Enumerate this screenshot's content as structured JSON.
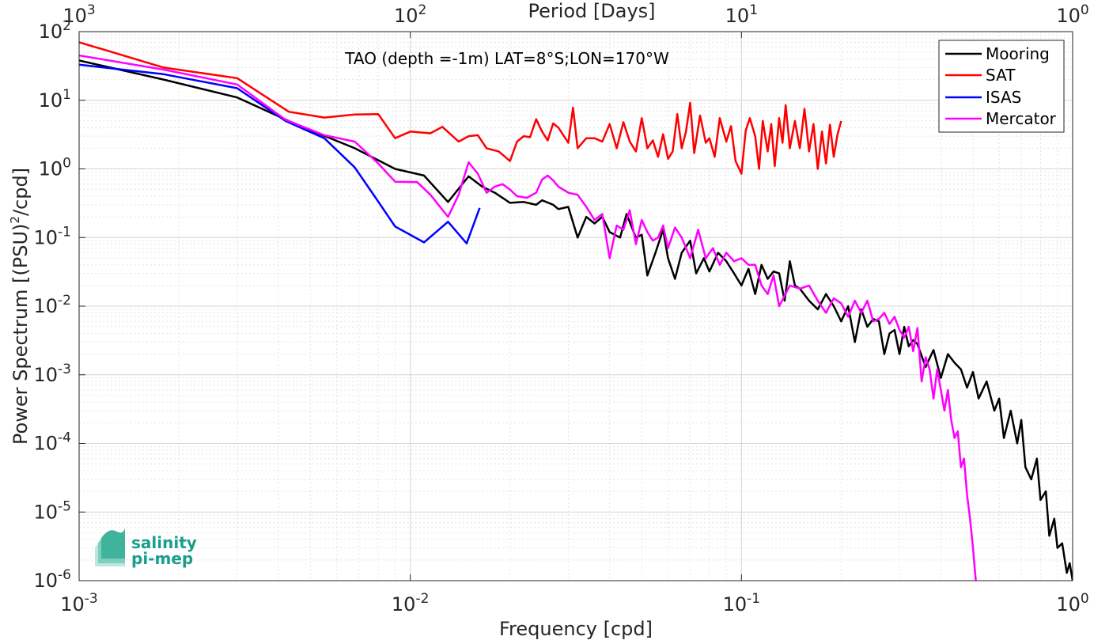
{
  "chart_data": {
    "type": "line",
    "title": "TAO (depth =-1m) LAT=8°S;LON=170°W",
    "xlabel": "Frequency [cpd]",
    "ylabel_parts": [
      "Power Spectrum [(PSU)",
      "2",
      "/cpd]"
    ],
    "top_xlabel": "Period [Days]",
    "x_scale": "log",
    "y_scale": "log",
    "xlim": [
      0.001,
      1
    ],
    "ylim": [
      1e-06,
      100
    ],
    "grid": "on",
    "legend_position": "top-right",
    "x_ticks": [
      {
        "value": 0.001,
        "base": "10",
        "exp": "-3"
      },
      {
        "value": 0.01,
        "base": "10",
        "exp": "-2"
      },
      {
        "value": 0.1,
        "base": "10",
        "exp": "-1"
      },
      {
        "value": 1,
        "base": "10",
        "exp": "0"
      }
    ],
    "top_ticks": [
      {
        "value": 0.001,
        "base": "10",
        "exp": "3"
      },
      {
        "value": 0.01,
        "base": "10",
        "exp": "2"
      },
      {
        "value": 0.1,
        "base": "10",
        "exp": "1"
      },
      {
        "value": 1,
        "base": "10",
        "exp": "0"
      }
    ],
    "y_ticks": [
      {
        "value": 100,
        "base": "10",
        "exp": "2"
      },
      {
        "value": 10,
        "base": "10",
        "exp": "1"
      },
      {
        "value": 1,
        "base": "10",
        "exp": "0"
      },
      {
        "value": 0.1,
        "base": "10",
        "exp": "-1"
      },
      {
        "value": 0.01,
        "base": "10",
        "exp": "-2"
      },
      {
        "value": 0.001,
        "base": "10",
        "exp": "-3"
      },
      {
        "value": 0.0001,
        "base": "10",
        "exp": "-4"
      },
      {
        "value": 1e-05,
        "base": "10",
        "exp": "-5"
      },
      {
        "value": 1e-06,
        "base": "10",
        "exp": "-6"
      }
    ],
    "series": [
      {
        "name": "Mooring",
        "color": "#000000",
        "points": [
          [
            0.001,
            38
          ],
          [
            0.0018,
            20
          ],
          [
            0.003,
            11
          ],
          [
            0.0045,
            4.5
          ],
          [
            0.0068,
            2.0
          ],
          [
            0.009,
            1.0
          ],
          [
            0.011,
            0.8
          ],
          [
            0.013,
            0.33
          ],
          [
            0.015,
            0.78
          ],
          [
            0.0165,
            0.55
          ],
          [
            0.018,
            0.45
          ],
          [
            0.02,
            0.32
          ],
          [
            0.022,
            0.33
          ],
          [
            0.024,
            0.3
          ],
          [
            0.025,
            0.35
          ],
          [
            0.027,
            0.3
          ],
          [
            0.028,
            0.26
          ],
          [
            0.03,
            0.28
          ],
          [
            0.032,
            0.1
          ],
          [
            0.034,
            0.2
          ],
          [
            0.036,
            0.16
          ],
          [
            0.038,
            0.2
          ],
          [
            0.04,
            0.12
          ],
          [
            0.043,
            0.1
          ],
          [
            0.045,
            0.22
          ],
          [
            0.048,
            0.1
          ],
          [
            0.05,
            0.11
          ],
          [
            0.052,
            0.028
          ],
          [
            0.055,
            0.06
          ],
          [
            0.058,
            0.13
          ],
          [
            0.06,
            0.05
          ],
          [
            0.063,
            0.025
          ],
          [
            0.066,
            0.06
          ],
          [
            0.07,
            0.09
          ],
          [
            0.073,
            0.03
          ],
          [
            0.077,
            0.05
          ],
          [
            0.08,
            0.032
          ],
          [
            0.085,
            0.06
          ],
          [
            0.09,
            0.045
          ],
          [
            0.095,
            0.03
          ],
          [
            0.1,
            0.02
          ],
          [
            0.105,
            0.035
          ],
          [
            0.11,
            0.015
          ],
          [
            0.115,
            0.04
          ],
          [
            0.12,
            0.025
          ],
          [
            0.125,
            0.032
          ],
          [
            0.13,
            0.03
          ],
          [
            0.135,
            0.012
          ],
          [
            0.14,
            0.045
          ],
          [
            0.145,
            0.02
          ],
          [
            0.15,
            0.018
          ],
          [
            0.16,
            0.012
          ],
          [
            0.17,
            0.009
          ],
          [
            0.18,
            0.015
          ],
          [
            0.19,
            0.01
          ],
          [
            0.2,
            0.006
          ],
          [
            0.21,
            0.01
          ],
          [
            0.22,
            0.003
          ],
          [
            0.23,
            0.009
          ],
          [
            0.24,
            0.005
          ],
          [
            0.25,
            0.0065
          ],
          [
            0.26,
            0.006
          ],
          [
            0.27,
            0.002
          ],
          [
            0.28,
            0.004
          ],
          [
            0.29,
            0.0045
          ],
          [
            0.3,
            0.002
          ],
          [
            0.31,
            0.005
          ],
          [
            0.32,
            0.0026
          ],
          [
            0.33,
            0.0032
          ],
          [
            0.34,
            0.0028
          ],
          [
            0.36,
            0.0013
          ],
          [
            0.38,
            0.0023
          ],
          [
            0.4,
            0.0009
          ],
          [
            0.42,
            0.002
          ],
          [
            0.44,
            0.0015
          ],
          [
            0.46,
            0.0012
          ],
          [
            0.48,
            0.00065
          ],
          [
            0.5,
            0.0011
          ],
          [
            0.52,
            0.00045
          ],
          [
            0.55,
            0.0008
          ],
          [
            0.58,
            0.0003
          ],
          [
            0.6,
            0.00045
          ],
          [
            0.62,
            0.00012
          ],
          [
            0.65,
            0.0003
          ],
          [
            0.68,
            0.0001
          ],
          [
            0.7,
            0.00022
          ],
          [
            0.72,
            4.5e-05
          ],
          [
            0.75,
            3e-05
          ],
          [
            0.78,
            6e-05
          ],
          [
            0.8,
            1.5e-05
          ],
          [
            0.83,
            2e-05
          ],
          [
            0.85,
            4.5e-06
          ],
          [
            0.88,
            8e-06
          ],
          [
            0.9,
            3e-06
          ],
          [
            0.93,
            3.5e-06
          ],
          [
            0.96,
            1.3e-06
          ],
          [
            0.98,
            1.8e-06
          ],
          [
            1.0,
            1e-06
          ]
        ]
      },
      {
        "name": "SAT",
        "color": "#ff0000",
        "points": [
          [
            0.001,
            70
          ],
          [
            0.0018,
            30
          ],
          [
            0.003,
            21
          ],
          [
            0.0043,
            6.8
          ],
          [
            0.0055,
            5.6
          ],
          [
            0.0068,
            6.2
          ],
          [
            0.008,
            6.3
          ],
          [
            0.009,
            2.8
          ],
          [
            0.01,
            3.5
          ],
          [
            0.0115,
            3.3
          ],
          [
            0.0125,
            4.1
          ],
          [
            0.014,
            2.5
          ],
          [
            0.015,
            3.0
          ],
          [
            0.016,
            3.1
          ],
          [
            0.017,
            2.0
          ],
          [
            0.0185,
            1.8
          ],
          [
            0.02,
            1.3
          ],
          [
            0.021,
            2.5
          ],
          [
            0.022,
            3.0
          ],
          [
            0.023,
            2.9
          ],
          [
            0.024,
            5.3
          ],
          [
            0.025,
            3.5
          ],
          [
            0.026,
            2.6
          ],
          [
            0.027,
            4.6
          ],
          [
            0.028,
            4.0
          ],
          [
            0.03,
            2.4
          ],
          [
            0.031,
            7.8
          ],
          [
            0.032,
            2.0
          ],
          [
            0.034,
            2.8
          ],
          [
            0.036,
            2.8
          ],
          [
            0.038,
            2.5
          ],
          [
            0.04,
            4.5
          ],
          [
            0.042,
            2.0
          ],
          [
            0.044,
            4.8
          ],
          [
            0.046,
            2.5
          ],
          [
            0.048,
            1.8
          ],
          [
            0.05,
            5.5
          ],
          [
            0.052,
            2.0
          ],
          [
            0.054,
            2.6
          ],
          [
            0.056,
            1.5
          ],
          [
            0.058,
            3.2
          ],
          [
            0.06,
            1.4
          ],
          [
            0.062,
            1.8
          ],
          [
            0.064,
            6.3
          ],
          [
            0.066,
            2.0
          ],
          [
            0.068,
            3.5
          ],
          [
            0.07,
            9.2
          ],
          [
            0.072,
            1.7
          ],
          [
            0.075,
            6.0
          ],
          [
            0.078,
            2.4
          ],
          [
            0.08,
            2.8
          ],
          [
            0.083,
            1.5
          ],
          [
            0.086,
            5.5
          ],
          [
            0.09,
            2.5
          ],
          [
            0.093,
            4.2
          ],
          [
            0.096,
            1.3
          ],
          [
            0.1,
            0.85
          ],
          [
            0.103,
            3.6
          ],
          [
            0.106,
            5.5
          ],
          [
            0.11,
            3.0
          ],
          [
            0.113,
            1.0
          ],
          [
            0.116,
            5.0
          ],
          [
            0.12,
            1.8
          ],
          [
            0.123,
            4.5
          ],
          [
            0.126,
            1.1
          ],
          [
            0.13,
            5.5
          ],
          [
            0.133,
            2.4
          ],
          [
            0.136,
            8.5
          ],
          [
            0.14,
            2.0
          ],
          [
            0.145,
            5.0
          ],
          [
            0.15,
            2.0
          ],
          [
            0.155,
            7.5
          ],
          [
            0.16,
            1.8
          ],
          [
            0.165,
            4.5
          ],
          [
            0.17,
            1.0
          ],
          [
            0.175,
            3.5
          ],
          [
            0.18,
            1.2
          ],
          [
            0.185,
            4.4
          ],
          [
            0.19,
            1.5
          ],
          [
            0.195,
            3.2
          ],
          [
            0.2,
            5.0
          ]
        ]
      },
      {
        "name": "ISAS",
        "color": "#0000ff",
        "points": [
          [
            0.001,
            33
          ],
          [
            0.0018,
            24
          ],
          [
            0.003,
            15
          ],
          [
            0.0042,
            5.0
          ],
          [
            0.0055,
            2.8
          ],
          [
            0.0068,
            1.05
          ],
          [
            0.0078,
            0.4
          ],
          [
            0.009,
            0.145
          ],
          [
            0.011,
            0.085
          ],
          [
            0.013,
            0.17
          ],
          [
            0.0148,
            0.082
          ],
          [
            0.0162,
            0.27
          ]
        ]
      },
      {
        "name": "Mercator",
        "color": "#ff00ff",
        "points": [
          [
            0.001,
            45
          ],
          [
            0.0018,
            28
          ],
          [
            0.003,
            17
          ],
          [
            0.0042,
            5.2
          ],
          [
            0.0055,
            3.1
          ],
          [
            0.0068,
            2.5
          ],
          [
            0.008,
            1.2
          ],
          [
            0.009,
            0.65
          ],
          [
            0.0105,
            0.64
          ],
          [
            0.0115,
            0.42
          ],
          [
            0.013,
            0.2
          ],
          [
            0.014,
            0.42
          ],
          [
            0.015,
            1.25
          ],
          [
            0.016,
            0.85
          ],
          [
            0.017,
            0.45
          ],
          [
            0.018,
            0.55
          ],
          [
            0.019,
            0.6
          ],
          [
            0.02,
            0.5
          ],
          [
            0.021,
            0.4
          ],
          [
            0.0225,
            0.38
          ],
          [
            0.024,
            0.45
          ],
          [
            0.025,
            0.7
          ],
          [
            0.026,
            0.8
          ],
          [
            0.027,
            0.68
          ],
          [
            0.028,
            0.55
          ],
          [
            0.03,
            0.45
          ],
          [
            0.032,
            0.42
          ],
          [
            0.034,
            0.28
          ],
          [
            0.036,
            0.18
          ],
          [
            0.038,
            0.22
          ],
          [
            0.04,
            0.05
          ],
          [
            0.042,
            0.15
          ],
          [
            0.044,
            0.13
          ],
          [
            0.046,
            0.25
          ],
          [
            0.048,
            0.08
          ],
          [
            0.05,
            0.18
          ],
          [
            0.052,
            0.12
          ],
          [
            0.054,
            0.09
          ],
          [
            0.056,
            0.1
          ],
          [
            0.058,
            0.15
          ],
          [
            0.06,
            0.07
          ],
          [
            0.063,
            0.14
          ],
          [
            0.066,
            0.1
          ],
          [
            0.07,
            0.05
          ],
          [
            0.074,
            0.13
          ],
          [
            0.078,
            0.05
          ],
          [
            0.082,
            0.07
          ],
          [
            0.086,
            0.04
          ],
          [
            0.09,
            0.06
          ],
          [
            0.095,
            0.045
          ],
          [
            0.1,
            0.05
          ],
          [
            0.105,
            0.04
          ],
          [
            0.11,
            0.04
          ],
          [
            0.115,
            0.02
          ],
          [
            0.12,
            0.015
          ],
          [
            0.125,
            0.028
          ],
          [
            0.13,
            0.01
          ],
          [
            0.14,
            0.02
          ],
          [
            0.15,
            0.018
          ],
          [
            0.16,
            0.02
          ],
          [
            0.17,
            0.012
          ],
          [
            0.18,
            0.008
          ],
          [
            0.19,
            0.013
          ],
          [
            0.2,
            0.011
          ],
          [
            0.21,
            0.007
          ],
          [
            0.22,
            0.012
          ],
          [
            0.23,
            0.008
          ],
          [
            0.24,
            0.012
          ],
          [
            0.25,
            0.006
          ],
          [
            0.26,
            0.0065
          ],
          [
            0.27,
            0.008
          ],
          [
            0.28,
            0.0055
          ],
          [
            0.29,
            0.007
          ],
          [
            0.3,
            0.0045
          ],
          [
            0.31,
            0.0035
          ],
          [
            0.32,
            0.005
          ],
          [
            0.33,
            0.0022
          ],
          [
            0.34,
            0.0048
          ],
          [
            0.35,
            0.0008
          ],
          [
            0.36,
            0.0018
          ],
          [
            0.37,
            0.0012
          ],
          [
            0.38,
            0.00045
          ],
          [
            0.39,
            0.0012
          ],
          [
            0.4,
            0.0006
          ],
          [
            0.41,
            0.0003
          ],
          [
            0.42,
            0.0006
          ],
          [
            0.43,
            0.00022
          ],
          [
            0.44,
            0.00012
          ],
          [
            0.45,
            0.00015
          ],
          [
            0.46,
            4.5e-05
          ],
          [
            0.47,
            6e-05
          ],
          [
            0.48,
            1.8e-05
          ],
          [
            0.49,
            8e-06
          ],
          [
            0.5,
            3e-06
          ],
          [
            0.51,
            1e-06
          ]
        ]
      }
    ]
  },
  "logo": {
    "line1": "salinity",
    "line2": "pi-mep"
  }
}
